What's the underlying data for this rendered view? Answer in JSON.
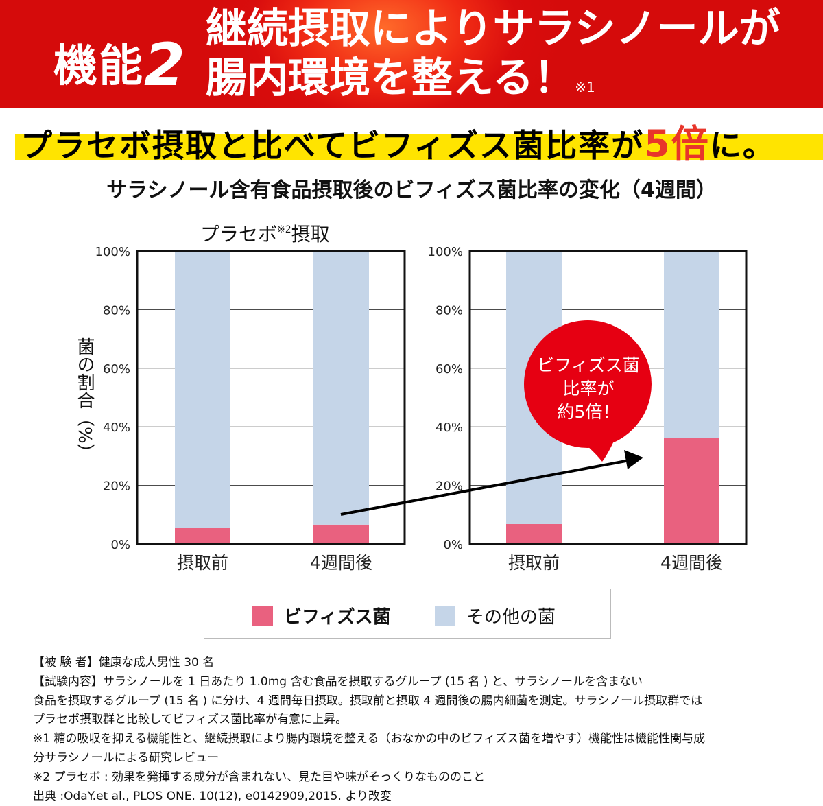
{
  "header": {
    "feature_label": "機能",
    "feature_number": "2",
    "title_line1": "継続摂取によりサラシノールが",
    "title_line2": "腸内環境を整える！",
    "title_note": "※1"
  },
  "subtitle": {
    "before": "プラセボ摂取と比べてビフィズス菌比率が",
    "highlight": "5倍",
    "after": "に。"
  },
  "chart_heading": "サラシノール含有食品摂取後のビフィズス菌比率の変化（4週間）",
  "colors": {
    "header_red": "#d90d0d",
    "band_yellow": "#ffe400",
    "bifido": "#e9617f",
    "other": "#c5d5e8",
    "bubble": "#e60012",
    "highlight": "#e8352a"
  },
  "chart_data": [
    {
      "type": "bar",
      "stacked": true,
      "title": "プラセボ",
      "title_note": "※2",
      "title_suffix": "摂取",
      "ylabel": "菌の割合（%）",
      "ylim": [
        0,
        100
      ],
      "yticks": [
        "0%",
        "20%",
        "40%",
        "60%",
        "80%",
        "100%"
      ],
      "grid": true,
      "categories": [
        "摂取前",
        "4週間後"
      ],
      "series": [
        {
          "name": "ビフィズス菌",
          "values": [
            5.6,
            6.6
          ]
        },
        {
          "name": "その他の菌",
          "values": [
            94.4,
            93.4
          ]
        }
      ]
    },
    {
      "type": "bar",
      "stacked": true,
      "ylim": [
        0,
        100
      ],
      "yticks": [
        "0%",
        "20%",
        "40%",
        "60%",
        "80%",
        "100%"
      ],
      "grid": true,
      "categories": [
        "摂取前",
        "4週間後"
      ],
      "series": [
        {
          "name": "ビフィズス菌",
          "values": [
            6.8,
            36.3
          ]
        },
        {
          "name": "その他の菌",
          "values": [
            93.2,
            63.7
          ]
        }
      ],
      "annotation": [
        "ビフィズス菌",
        "比率が",
        "約5倍！"
      ]
    }
  ],
  "legend": [
    {
      "label": "ビフィズス菌",
      "color": "#e9617f"
    },
    {
      "label": "その他の菌",
      "color": "#c5d5e8"
    }
  ],
  "notes": [
    "【被 験 者】健康な成人男性 30 名",
    "【試験内容】サラシノールを 1 日あたり 1.0mg 含む食品を摂取するグループ (15 名 ) と、サラシノールを含まない",
    "食品を摂取するグループ (15 名 ) に分け、4 週間毎日摂取。摂取前と摂取 4 週間後の腸内細菌を測定。サラシノール摂取群では",
    "プラセボ摂取群と比較してビフィズス菌比率が有意に上昇。",
    "※1 糖の吸収を抑える機能性と、継続摂取により腸内環境を整える（おなかの中のビフィズス菌を増やす）機能性は機能性関与成",
    "分サラシノールによる研究レビュー",
    "※2 プラセボ : 効果を発揮する成分が含まれない、見た目や味がそっくりなもののこと",
    "出典 :OdaY.et al., PLOS ONE. 10(12), e0142909,2015. より改変"
  ]
}
